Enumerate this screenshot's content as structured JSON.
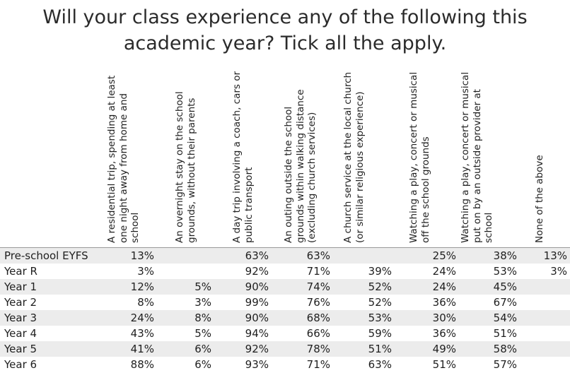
{
  "title": "Will your class experience any of the following this academic year? Tick all the apply.",
  "columns": [
    "A residential trip, spending at least one night away from home and school",
    "An overnight stay on the school grounds, without their parents",
    "A day trip involving a coach, cars or public transport",
    "An outing outside the school grounds within walking distance (excluding church services)",
    "A church service at the local church (or similar religious experience)",
    "Watching a play, concert or musical off the school grounds",
    "Watching a play, concert or musical put on by an outside provider at school",
    "None of the above"
  ],
  "rows": [
    {
      "label": "Pre-school EYFS",
      "cells": [
        "13%",
        "",
        "63%",
        "63%",
        "",
        "25%",
        "38%",
        "13%"
      ]
    },
    {
      "label": "Year R",
      "cells": [
        "3%",
        "",
        "92%",
        "71%",
        "39%",
        "24%",
        "53%",
        "3%"
      ]
    },
    {
      "label": "Year 1",
      "cells": [
        "12%",
        "5%",
        "90%",
        "74%",
        "52%",
        "24%",
        "45%",
        ""
      ]
    },
    {
      "label": "Year 2",
      "cells": [
        "8%",
        "3%",
        "99%",
        "76%",
        "52%",
        "36%",
        "67%",
        ""
      ]
    },
    {
      "label": "Year 3",
      "cells": [
        "24%",
        "8%",
        "90%",
        "68%",
        "53%",
        "30%",
        "54%",
        ""
      ]
    },
    {
      "label": "Year 4",
      "cells": [
        "43%",
        "5%",
        "94%",
        "66%",
        "59%",
        "36%",
        "51%",
        ""
      ]
    },
    {
      "label": "Year 5",
      "cells": [
        "41%",
        "6%",
        "92%",
        "78%",
        "51%",
        "49%",
        "58%",
        ""
      ]
    },
    {
      "label": "Year 6",
      "cells": [
        "88%",
        "6%",
        "93%",
        "71%",
        "63%",
        "51%",
        "57%",
        ""
      ]
    }
  ],
  "chart_data": {
    "type": "table",
    "title": "Will your class experience any of the following this academic year? Tick all the apply.",
    "columns": [
      "A residential trip, spending at least one night away from home and school",
      "An overnight stay on the school grounds, without their parents",
      "A day trip involving a coach, cars or public transport",
      "An outing outside the school grounds within walking distance (excluding church services)",
      "A church service at the local church (or similar religious experience)",
      "Watching a play, concert or musical off the school grounds",
      "Watching a play, concert or musical put on by an outside provider at school",
      "None of the above"
    ],
    "row_labels": [
      "Pre-school EYFS",
      "Year R",
      "Year 1",
      "Year 2",
      "Year 3",
      "Year 4",
      "Year 5",
      "Year 6"
    ],
    "values": [
      [
        13,
        null,
        63,
        63,
        null,
        25,
        38,
        13
      ],
      [
        3,
        null,
        92,
        71,
        39,
        24,
        53,
        3
      ],
      [
        12,
        5,
        90,
        74,
        52,
        24,
        45,
        null
      ],
      [
        8,
        3,
        99,
        76,
        52,
        36,
        67,
        null
      ],
      [
        24,
        8,
        90,
        68,
        53,
        30,
        54,
        null
      ],
      [
        43,
        5,
        94,
        66,
        59,
        36,
        51,
        null
      ],
      [
        41,
        6,
        92,
        78,
        51,
        49,
        58,
        null
      ],
      [
        88,
        6,
        93,
        71,
        63,
        51,
        57,
        null
      ]
    ],
    "unit": "%"
  }
}
